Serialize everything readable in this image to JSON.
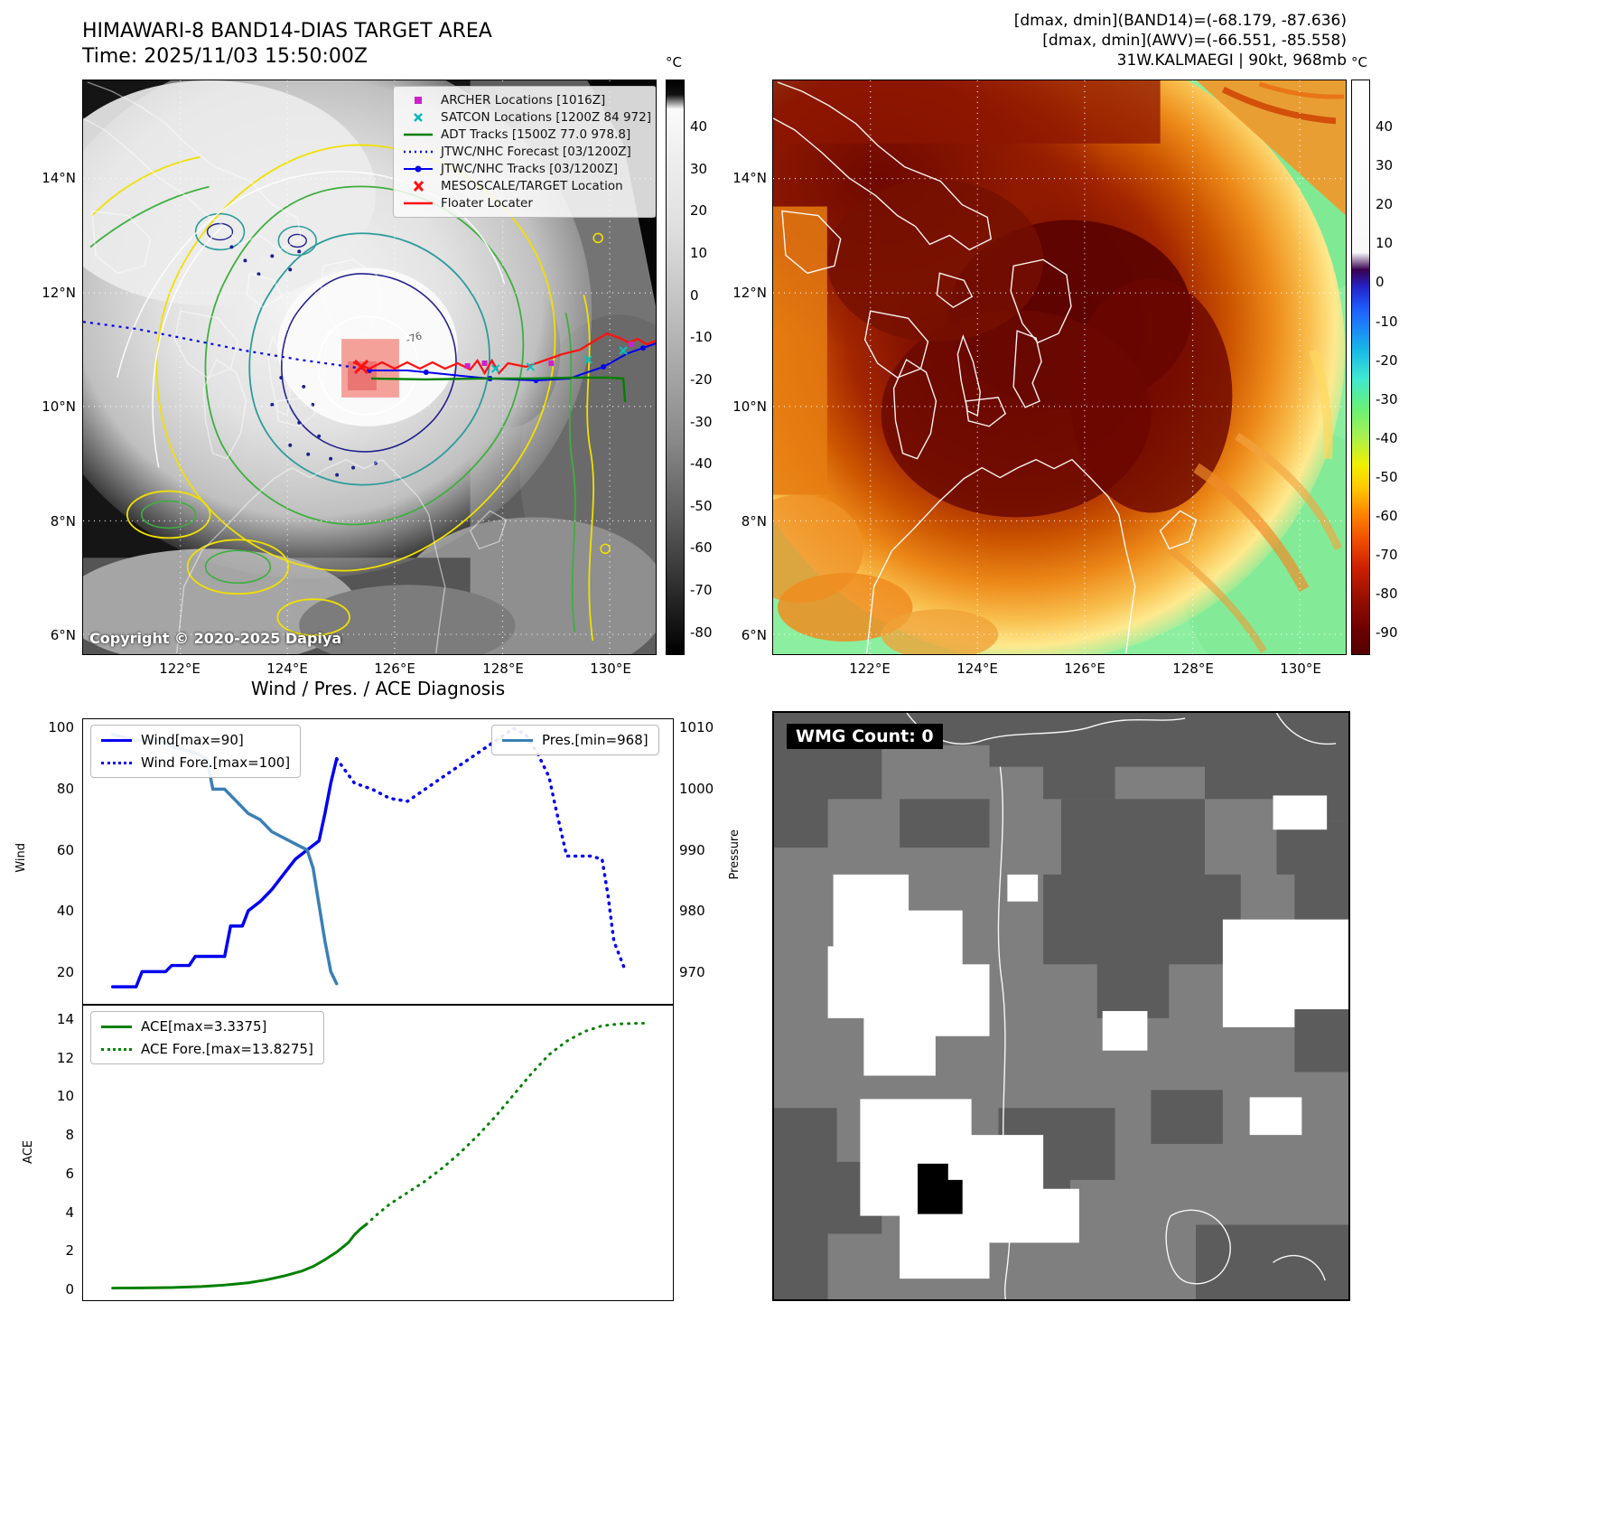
{
  "band14": {
    "title": "HIMAWARI-8 BAND14-DIAS TARGET AREA",
    "time_label": "Time: 2025/11/03 15:50:00Z",
    "copyright": "Copyright © 2020-2025 Dapiya",
    "contour_label": "-76",
    "legend": [
      {
        "label": "ARCHER Locations [1016Z]",
        "marker": "magenta-square",
        "color": "#cc22cc"
      },
      {
        "label": "SATCON Locations [1200Z 84 972]",
        "marker": "cyan-x",
        "color": "#00b8b8"
      },
      {
        "label": "ADT Tracks [1500Z 77.0 978.8]",
        "marker": "green-line",
        "color": "#008000"
      },
      {
        "label": "JTWC/NHC Forecast [03/1200Z]",
        "marker": "blue-dotted-line",
        "color": "#0000ee"
      },
      {
        "label": "JTWC/NHC Tracks [03/1200Z]",
        "marker": "blue-line-dot",
        "color": "#0000ee"
      },
      {
        "label": "MESOSCALE/TARGET Location",
        "marker": "red-x",
        "color": "#ff1111"
      },
      {
        "label": "Floater Locater",
        "marker": "red-line",
        "color": "#ff1111"
      }
    ],
    "x_ticks": [
      "122°E",
      "124°E",
      "126°E",
      "128°E",
      "130°E"
    ],
    "y_ticks": [
      "14°N",
      "12°N",
      "10°N",
      "8°N",
      "6°N"
    ],
    "colorbar_unit": "°C",
    "colorbar_ticks": [
      "40",
      "30",
      "20",
      "10",
      "0",
      "-10",
      "-20",
      "-30",
      "-40",
      "-50",
      "-60",
      "-70",
      "-80"
    ]
  },
  "awv": {
    "header_line1": "[dmax, dmin](BAND14)=(-68.179, -87.636)",
    "header_line2": "[dmax, dmin](AWV)=(-66.551, -85.558)",
    "header_line3": "31W.KALMAEGI | 90kt, 968mb",
    "x_ticks": [
      "122°E",
      "124°E",
      "126°E",
      "128°E",
      "130°E"
    ],
    "y_ticks": [
      "14°N",
      "12°N",
      "10°N",
      "8°N",
      "6°N"
    ],
    "colorbar_unit": "°C",
    "colorbar_ticks": [
      "40",
      "30",
      "20",
      "10",
      "0",
      "-10",
      "-20",
      "-30",
      "-40",
      "-50",
      "-60",
      "-70",
      "-80",
      "-90"
    ]
  },
  "diagnosis": {
    "title": "Wind / Pres. / ACE Diagnosis"
  },
  "wmg": {
    "label": "WMG Count: 0"
  },
  "chart_data": [
    {
      "type": "line",
      "title": "Wind / Pres. / ACE Diagnosis",
      "ylabel_left": "Wind",
      "ylabel_right": "Pressure",
      "yticks_left": [
        100,
        80,
        60,
        40,
        20
      ],
      "yticks_right": [
        1010,
        1000,
        990,
        980,
        970
      ],
      "xlim": [
        0,
        100
      ],
      "ylim_left": [
        9.4,
        103
      ],
      "ylim_right": [
        964.7,
        1011.5
      ],
      "grid": false,
      "legend_position": "upper-left and upper-right",
      "series": [
        {
          "name": "Wind[max=90]",
          "axis": "left",
          "style": "solid",
          "color": "#0000ee",
          "width": 3.5,
          "x": [
            5,
            9,
            10,
            14,
            15,
            18,
            19,
            24,
            25,
            27,
            28,
            30,
            32,
            34,
            36,
            38,
            40,
            41,
            42,
            43
          ],
          "y": [
            15,
            15,
            20,
            20,
            22,
            22,
            25,
            25,
            35,
            35,
            40,
            43,
            47,
            52,
            57,
            60,
            63,
            72,
            82,
            90
          ]
        },
        {
          "name": "Wind Fore.[max=100]",
          "axis": "left",
          "style": "dotted",
          "color": "#0000ee",
          "width": 3.5,
          "x": [
            43,
            46,
            49,
            52,
            55,
            58,
            61,
            64,
            67,
            70,
            73,
            75,
            77,
            79,
            80,
            82,
            86,
            88,
            89,
            90,
            92
          ],
          "y": [
            90,
            82,
            80,
            77,
            76,
            80,
            84,
            88,
            92,
            96,
            100,
            98,
            92,
            84,
            75,
            58,
            58,
            57,
            45,
            30,
            20
          ]
        },
        {
          "name": "Pres.[min=968]",
          "axis": "right",
          "style": "solid",
          "color": "#3a7fb5",
          "width": 3.5,
          "x": [
            5,
            9,
            13,
            15,
            19,
            21,
            22,
            24,
            26,
            28,
            30,
            32,
            34,
            36,
            38,
            39,
            40,
            41,
            42,
            43
          ],
          "y": [
            1009,
            1008,
            1008,
            1007,
            1006,
            1005,
            1000,
            1000,
            998,
            996,
            995,
            993,
            992,
            991,
            990,
            987,
            981,
            975,
            970,
            968
          ]
        }
      ]
    },
    {
      "type": "line",
      "ylabel_left": "ACE",
      "yticks_left": [
        14,
        12,
        10,
        8,
        6,
        4,
        2,
        0
      ],
      "xlim": [
        0,
        100
      ],
      "ylim_left": [
        -0.61,
        14.75
      ],
      "grid": false,
      "legend_position": "upper-left",
      "series": [
        {
          "name": "ACE[max=3.3375]",
          "axis": "left",
          "style": "solid",
          "color": "#008000",
          "width": 3,
          "x": [
            5,
            10,
            15,
            20,
            24,
            28,
            31,
            34,
            37,
            39,
            41,
            43,
            45,
            46,
            47,
            48
          ],
          "y": [
            0.02,
            0.03,
            0.05,
            0.1,
            0.18,
            0.3,
            0.45,
            0.65,
            0.9,
            1.15,
            1.5,
            1.9,
            2.4,
            2.8,
            3.1,
            3.34
          ]
        },
        {
          "name": "ACE Fore.[max=13.8275]",
          "axis": "left",
          "style": "dotted",
          "color": "#008000",
          "width": 3,
          "x": [
            48,
            50,
            52,
            55,
            58,
            61,
            64,
            67,
            70,
            73,
            76,
            79,
            82,
            85,
            88,
            91,
            94,
            95
          ],
          "y": [
            3.34,
            3.9,
            4.4,
            5.0,
            5.6,
            6.3,
            7.1,
            8.0,
            9.0,
            10.1,
            11.2,
            12.2,
            12.9,
            13.4,
            13.7,
            13.8,
            13.83,
            13.83
          ]
        }
      ]
    }
  ]
}
